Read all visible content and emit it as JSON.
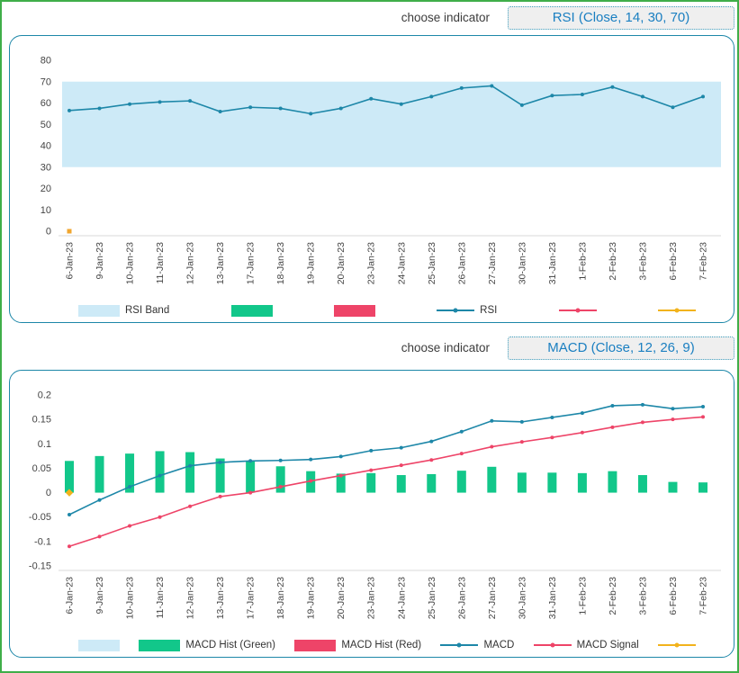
{
  "colors": {
    "frame_border": "#3fae49",
    "panel_border": "#1d87a8",
    "button_text": "#1a7fc1",
    "band_blue": "#cdeaf7",
    "hist_green": "#12c78a",
    "hist_red": "#ee4468",
    "line_teal": "#1d87a8",
    "line_pink": "#ee4468",
    "line_yellow": "#f2b31c",
    "marker_orange": "#f0a62f"
  },
  "headers": {
    "rsi": {
      "label": "choose indicator",
      "button": "RSI (Close, 14, 30, 70)"
    },
    "macd": {
      "label": "choose indicator",
      "button": "MACD (Close, 12, 26, 9)"
    }
  },
  "chart_data": [
    {
      "id": "rsi",
      "type": "line",
      "title": "",
      "x": [
        "6-Jan-23",
        "9-Jan-23",
        "10-Jan-23",
        "11-Jan-23",
        "12-Jan-23",
        "13-Jan-23",
        "17-Jan-23",
        "18-Jan-23",
        "19-Jan-23",
        "20-Jan-23",
        "23-Jan-23",
        "24-Jan-23",
        "25-Jan-23",
        "26-Jan-23",
        "27-Jan-23",
        "30-Jan-23",
        "31-Jan-23",
        "1-Feb-23",
        "2-Feb-23",
        "3-Feb-23",
        "6-Feb-23",
        "7-Feb-23"
      ],
      "y_ticks": [
        "0",
        "10",
        "20",
        "30",
        "40",
        "50",
        "60",
        "70",
        "80"
      ],
      "y_range": [
        0,
        80
      ],
      "grid": false,
      "band": {
        "label": "RSI Band",
        "from": 30,
        "to": 70,
        "color": "#cdeaf7"
      },
      "series": [
        {
          "name": "RSI",
          "color": "#1d87a8",
          "values": [
            56.5,
            57.5,
            59.5,
            60.5,
            61,
            56,
            58,
            57.5,
            55,
            57.5,
            62,
            59.5,
            63,
            67,
            68,
            59,
            63.5,
            64,
            67.5,
            63,
            58,
            63
          ]
        }
      ],
      "point_marker": {
        "shape": "square",
        "color": "#f0a62f",
        "x_index": 0,
        "value": 0
      },
      "legend_position": "bottom",
      "legend": [
        {
          "type": "band",
          "color": "#cdeaf7",
          "label": "RSI Band"
        },
        {
          "type": "bar",
          "color": "#12c78a",
          "label": ""
        },
        {
          "type": "bar",
          "color": "#ee4468",
          "label": ""
        },
        {
          "type": "line",
          "color": "#1d87a8",
          "label": "RSI"
        },
        {
          "type": "line",
          "color": "#ee4468",
          "label": ""
        },
        {
          "type": "line",
          "color": "#f2b31c",
          "label": ""
        }
      ]
    },
    {
      "id": "macd",
      "type": "bar-line",
      "title": "",
      "x": [
        "6-Jan-23",
        "9-Jan-23",
        "10-Jan-23",
        "11-Jan-23",
        "12-Jan-23",
        "13-Jan-23",
        "17-Jan-23",
        "18-Jan-23",
        "19-Jan-23",
        "20-Jan-23",
        "23-Jan-23",
        "24-Jan-23",
        "25-Jan-23",
        "26-Jan-23",
        "27-Jan-23",
        "30-Jan-23",
        "31-Jan-23",
        "1-Feb-23",
        "2-Feb-23",
        "3-Feb-23",
        "6-Feb-23",
        "7-Feb-23"
      ],
      "y_ticks": [
        "0.2",
        "0.15",
        "0.1",
        "0.05",
        "0",
        "-0.05",
        "-0.1",
        "-0.15"
      ],
      "y_range": [
        -0.15,
        0.2
      ],
      "grid": false,
      "bars": {
        "name": "MACD Hist (Green)",
        "color": "#12c78a",
        "values": [
          0.065,
          0.075,
          0.08,
          0.085,
          0.083,
          0.07,
          0.065,
          0.054,
          0.044,
          0.039,
          0.04,
          0.036,
          0.038,
          0.045,
          0.053,
          0.041,
          0.041,
          0.04,
          0.044,
          0.036,
          0.022,
          0.021
        ]
      },
      "series": [
        {
          "name": "MACD",
          "color": "#1d87a8",
          "values": [
            -0.045,
            -0.015,
            0.012,
            0.035,
            0.055,
            0.062,
            0.065,
            0.066,
            0.068,
            0.074,
            0.086,
            0.092,
            0.105,
            0.125,
            0.147,
            0.145,
            0.154,
            0.163,
            0.178,
            0.18,
            0.172,
            0.176
          ]
        },
        {
          "name": "MACD Signal",
          "color": "#ee4468",
          "values": [
            -0.11,
            -0.09,
            -0.068,
            -0.05,
            -0.028,
            -0.008,
            0.0,
            0.012,
            0.024,
            0.035,
            0.046,
            0.056,
            0.067,
            0.08,
            0.094,
            0.104,
            0.113,
            0.123,
            0.134,
            0.144,
            0.15,
            0.155
          ]
        }
      ],
      "point_marker": {
        "shape": "diamond",
        "color": "#f2b31c",
        "x_index": 0,
        "value": 0
      },
      "legend_position": "bottom",
      "legend": [
        {
          "type": "band",
          "color": "#cdeaf7",
          "label": ""
        },
        {
          "type": "bar",
          "color": "#12c78a",
          "label": "MACD Hist (Green)"
        },
        {
          "type": "bar",
          "color": "#ee4468",
          "label": "MACD Hist (Red)"
        },
        {
          "type": "line",
          "color": "#1d87a8",
          "label": "MACD"
        },
        {
          "type": "line",
          "color": "#ee4468",
          "label": "MACD Signal"
        },
        {
          "type": "line",
          "color": "#f2b31c",
          "label": ""
        }
      ]
    }
  ]
}
